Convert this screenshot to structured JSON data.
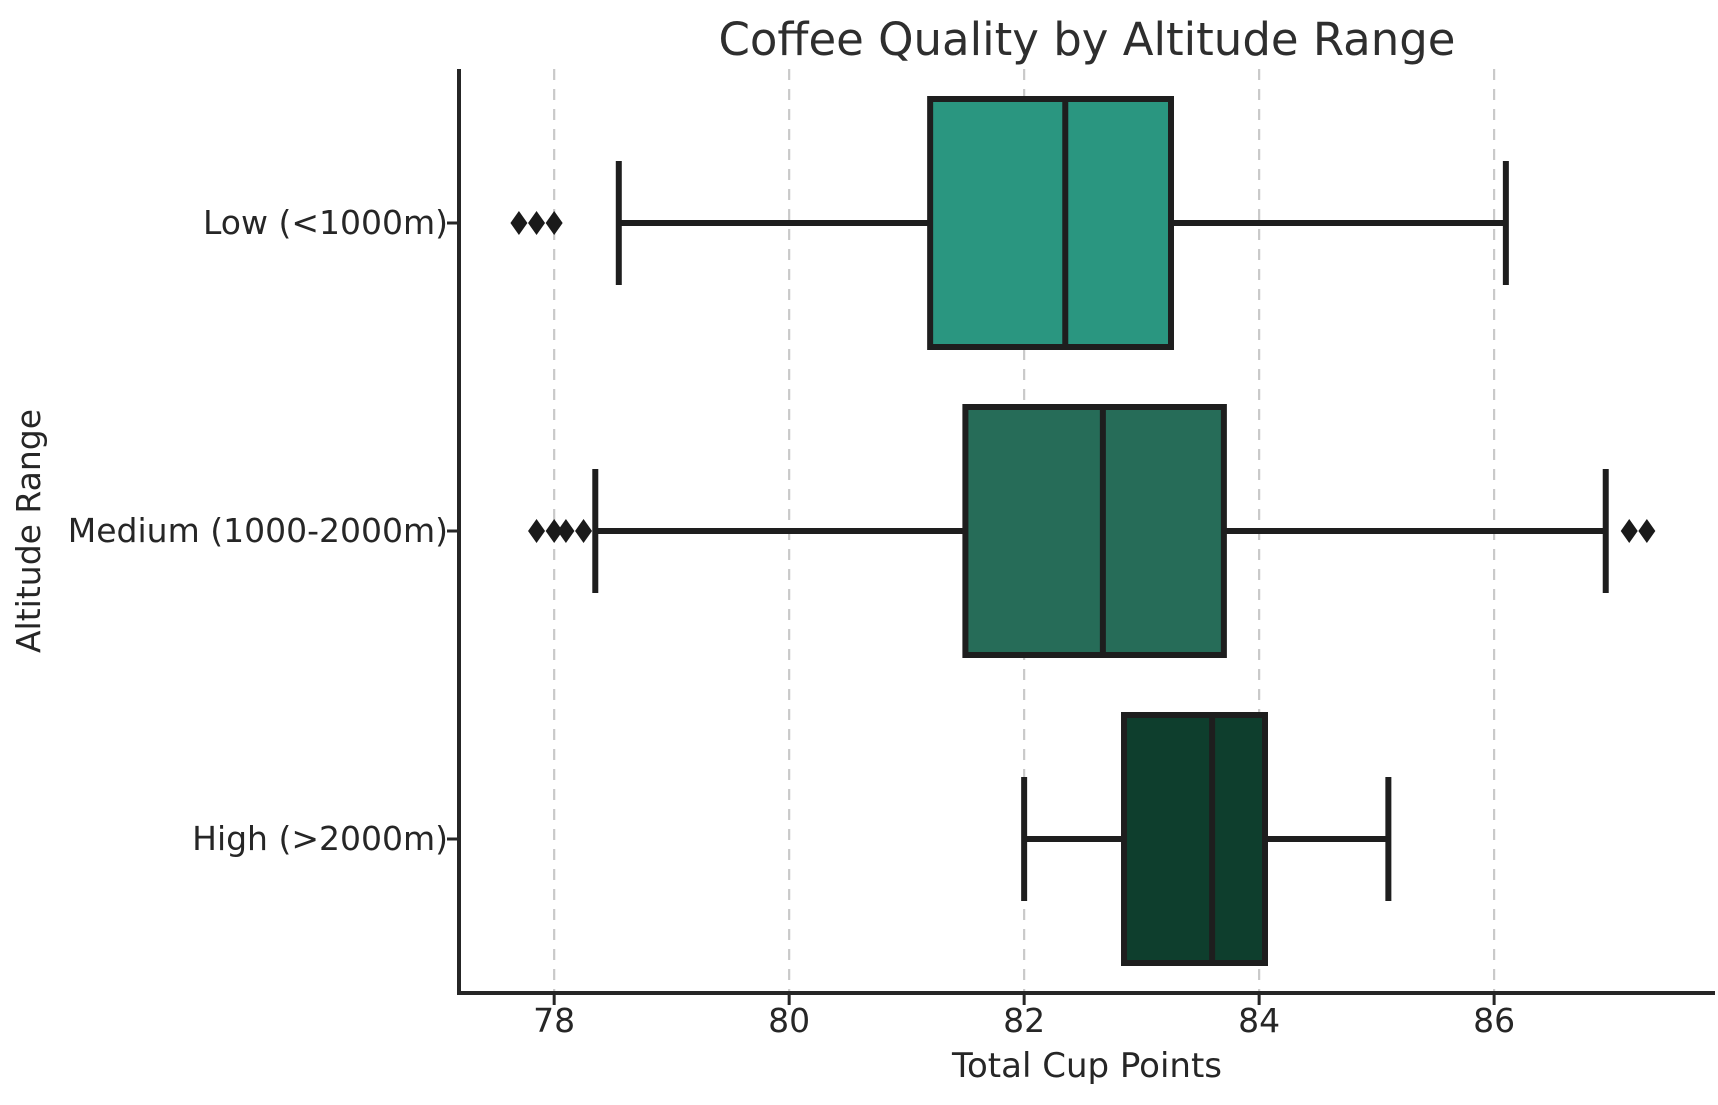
{
  "page": {
    "background_color": "#ffffff"
  },
  "chart_data": {
    "type": "boxplot",
    "orientation": "horizontal",
    "title": "Coffee Quality by Altitude Range",
    "xlabel": "Total Cup Points",
    "ylabel": "Altitude Range",
    "categories": [
      "Low (<1000m)",
      "Medium (1000-2000m)",
      "High (>2000m)"
    ],
    "xticks": [
      "78",
      "80",
      "82",
      "84",
      "86"
    ],
    "xtick_values": [
      78,
      80,
      82,
      84,
      86
    ],
    "xlim": [
      77.19,
      87.88
    ],
    "grid": {
      "axis": "x",
      "style": "dashed",
      "color": "#c9c9c9"
    },
    "legend": null,
    "series": [
      {
        "category": "Low (<1000m)",
        "whisker_low": 78.55,
        "q1": 81.2,
        "median": 82.35,
        "q3": 83.25,
        "whisker_high": 86.1,
        "outliers": [
          77.7,
          77.85,
          78.0
        ],
        "fill_color": "#2a9680"
      },
      {
        "category": "Medium (1000-2000m)",
        "whisker_low": 78.35,
        "q1": 81.5,
        "median": 82.67,
        "q3": 83.7,
        "whisker_high": 86.95,
        "outliers": [
          77.85,
          78.0,
          78.1,
          78.25,
          87.15,
          87.3
        ],
        "fill_color": "#266c58"
      },
      {
        "category": "High (>2000m)",
        "whisker_low": 82.0,
        "q1": 82.85,
        "median": 83.6,
        "q3": 84.05,
        "whisker_high": 85.1,
        "outliers": [],
        "fill_color": "#0e3e2d"
      }
    ],
    "colors": {
      "line": "#1e1e1e",
      "spine": "#262626",
      "text": "#262626",
      "grid": "#c9c9c9",
      "outlier": "#1a1a1a"
    }
  }
}
